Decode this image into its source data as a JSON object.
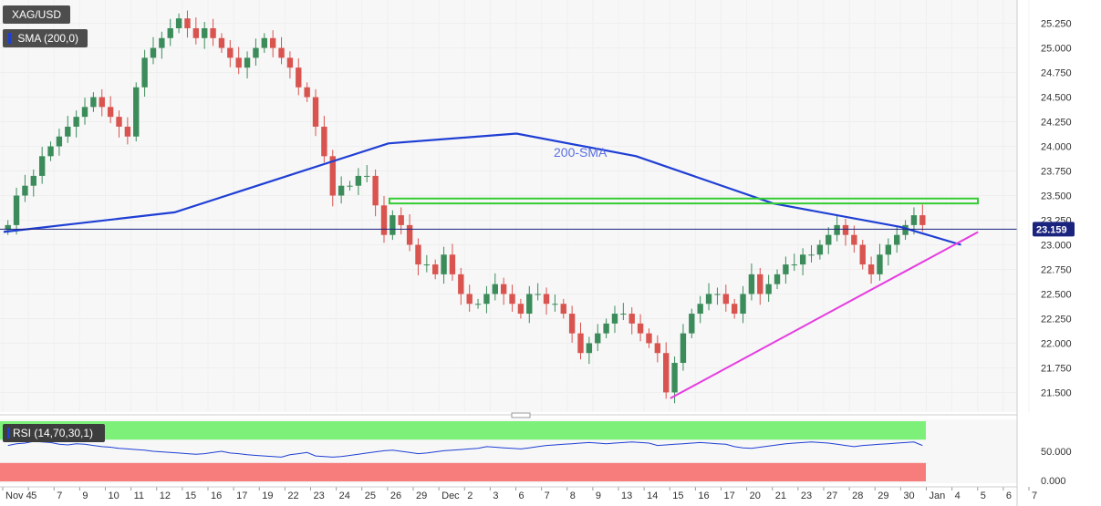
{
  "chart_data": {
    "type": "candlestick",
    "symbol": "XAG/USD",
    "indicator_label": "SMA (200,0)",
    "sma_annotation": "200-SMA",
    "last_price": "23.159",
    "price_axis": {
      "ylim": [
        21.3,
        25.45
      ],
      "ticks": [
        "25.250",
        "25.000",
        "24.750",
        "24.500",
        "24.250",
        "24.000",
        "23.750",
        "23.500",
        "23.250",
        "23.000",
        "22.750",
        "22.500",
        "22.250",
        "22.000",
        "21.750",
        "21.500"
      ]
    },
    "x_tick_labels": [
      "Nov 4",
      "5",
      "7",
      "9",
      "10",
      "11",
      "12",
      "15",
      "16",
      "17",
      "19",
      "22",
      "23",
      "24",
      "25",
      "26",
      "29",
      "Dec",
      "2",
      "3",
      "6",
      "7",
      "8",
      "9",
      "13",
      "14",
      "15",
      "16",
      "17",
      "20",
      "21",
      "23",
      "27",
      "28",
      "29",
      "30",
      "Jan",
      "4",
      "5",
      "6",
      "7"
    ],
    "x_label": "",
    "series": [
      {
        "name": "XAG/USD",
        "close": [
          23.2,
          23.5,
          23.6,
          23.7,
          23.9,
          24.0,
          24.1,
          24.2,
          24.3,
          24.4,
          24.5,
          24.4,
          24.3,
          24.2,
          24.1,
          24.6,
          24.9,
          25.0,
          25.1,
          25.2,
          25.3,
          25.2,
          25.1,
          25.2,
          25.1,
          25.0,
          24.9,
          24.8,
          24.9,
          25.0,
          25.1,
          25.0,
          24.9,
          24.8,
          24.6,
          24.5,
          24.2,
          23.9,
          23.5,
          23.6,
          23.6,
          23.7,
          23.7,
          23.4,
          23.1,
          23.3,
          23.2,
          23.0,
          22.8,
          22.8,
          22.7,
          22.9,
          22.7,
          22.5,
          22.4,
          22.4,
          22.5,
          22.6,
          22.5,
          22.4,
          22.3,
          22.5,
          22.5,
          22.4,
          22.4,
          22.3,
          22.1,
          21.9,
          22.0,
          22.1,
          22.2,
          22.3,
          22.3,
          22.2,
          22.1,
          22.0,
          21.9,
          21.5,
          21.8,
          22.1,
          22.3,
          22.4,
          22.5,
          22.5,
          22.4,
          22.3,
          22.5,
          22.7,
          22.5,
          22.6,
          22.7,
          22.8,
          22.8,
          22.9,
          22.9,
          23.0,
          23.1,
          23.2,
          23.1,
          23.0,
          22.8,
          22.7,
          22.9,
          23.0,
          23.1,
          23.2,
          23.3,
          23.2
        ]
      },
      {
        "name": "200-SMA",
        "x_index": [
          0,
          20,
          45,
          60,
          74,
          90,
          105,
          112
        ],
        "values": [
          23.13,
          23.33,
          24.03,
          24.13,
          23.9,
          23.42,
          23.18,
          23.0
        ]
      }
    ],
    "annotations": {
      "resistance_zone": [
        23.42,
        23.47
      ],
      "support_line": [
        [
          21.44,
          78
        ],
        [
          23.13,
          114
        ]
      ],
      "last_price_line": 23.159
    },
    "rsi": {
      "label": "RSI (14,70,30,1)",
      "ticks": [
        "50.000",
        "0.000"
      ],
      "ylim": [
        0,
        100
      ],
      "overbought": 70,
      "oversold": 30,
      "values": [
        60,
        63,
        64,
        67,
        66,
        65,
        62,
        61,
        63,
        62,
        60,
        58,
        57,
        55,
        54,
        53,
        52,
        50,
        49,
        48,
        47,
        46,
        45,
        46,
        48,
        50,
        47,
        46,
        44,
        43,
        42,
        41,
        40,
        44,
        46,
        48,
        42,
        41,
        40,
        41,
        43,
        45,
        47,
        49,
        51,
        52,
        50,
        48,
        46,
        47,
        49,
        51,
        52,
        53,
        54,
        55,
        58,
        57,
        56,
        55,
        54,
        56,
        58,
        60,
        61,
        62,
        63,
        64,
        65,
        64,
        63,
        64,
        65,
        66,
        65,
        64,
        60,
        61,
        62,
        63,
        64,
        65,
        64,
        63,
        62,
        58,
        56,
        55,
        57,
        59,
        61,
        63,
        64,
        65,
        66,
        65,
        64,
        62,
        60,
        58,
        60,
        61,
        62,
        63,
        64,
        65,
        66,
        60
      ]
    },
    "colors": {
      "up": "#3b8c5a",
      "down": "#d9534f",
      "sma": "#1f3fd4",
      "support": "#e53de0",
      "zone": "#33cc33",
      "rsi_line": "#1f3fd4",
      "rsi_over_band": "#7df07a",
      "rsi_under_band": "#f77c7c",
      "grid": "#eeeeee",
      "axis": "#cccccc"
    }
  }
}
